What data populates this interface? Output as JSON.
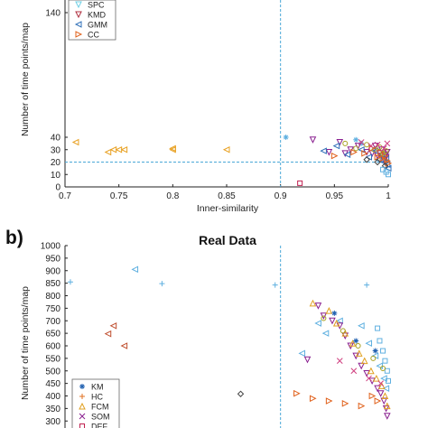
{
  "chart_data": [
    {
      "type": "scatter",
      "title": "",
      "xlabel": "Inner-similarity",
      "ylabel": "Number of time points/map",
      "xlim": [
        0.7,
        1.0
      ],
      "ylim": [
        0,
        160
      ],
      "xticks": [
        0.7,
        0.75,
        0.8,
        0.85,
        0.9,
        0.95,
        1
      ],
      "xtick_labels": [
        "0.7",
        "0.75",
        "0.8",
        "0.85",
        "0.9",
        "0.95",
        "1"
      ],
      "yticks": [
        0,
        10,
        20,
        30,
        40,
        140
      ],
      "ytick_labels": [
        "0",
        "10",
        "20",
        "30",
        "40",
        "140"
      ],
      "threshold_x": 0.9,
      "threshold_y": 20,
      "legend_position": "top-left",
      "legend": [
        {
          "label": "SPC",
          "marker": "tri-down",
          "color": "#6fd0e6"
        },
        {
          "label": "KMD",
          "marker": "tri-down",
          "color": "#b03040"
        },
        {
          "label": "GMM",
          "marker": "tri-left",
          "color": "#2f6fb8"
        },
        {
          "label": "CC",
          "marker": "tri-right",
          "color": "#e0601a"
        }
      ],
      "series": [
        {
          "marker": "tri-left",
          "color": "#e8a020",
          "points": [
            [
              0.71,
              36
            ],
            [
              0.74,
              28
            ],
            [
              0.745,
              30
            ],
            [
              0.75,
              30
            ],
            [
              0.755,
              30
            ],
            [
              0.8,
              31
            ],
            [
              0.8,
              30
            ],
            [
              0.85,
              30
            ]
          ]
        },
        {
          "marker": "star",
          "color": "#5fb0e0",
          "points": [
            [
              0.905,
              40
            ],
            [
              0.97,
              38
            ],
            [
              0.975,
              35
            ]
          ]
        },
        {
          "marker": "square",
          "color": "#c02050",
          "points": [
            [
              0.918,
              3
            ]
          ]
        },
        {
          "marker": "tri-down",
          "color": "#8a2090",
          "points": [
            [
              0.93,
              38
            ],
            [
              0.945,
              28
            ],
            [
              0.955,
              36
            ],
            [
              0.96,
              27
            ],
            [
              0.965,
              30
            ],
            [
              0.972,
              33
            ],
            [
              0.98,
              28
            ],
            [
              0.985,
              27
            ],
            [
              0.988,
              33
            ],
            [
              0.99,
              25
            ],
            [
              0.992,
              27
            ],
            [
              0.994,
              30
            ],
            [
              0.996,
              22
            ],
            [
              0.997,
              26
            ],
            [
              0.998,
              24
            ],
            [
              0.999,
              28
            ]
          ]
        },
        {
          "marker": "tri-left",
          "color": "#2f6fb8",
          "points": [
            [
              0.94,
              29
            ],
            [
              0.952,
              33
            ],
            [
              0.962,
              26
            ],
            [
              0.975,
              30
            ],
            [
              0.982,
              24
            ],
            [
              0.988,
              29
            ],
            [
              0.991,
              22
            ],
            [
              0.994,
              26
            ],
            [
              0.996,
              20
            ],
            [
              0.998,
              23
            ],
            [
              0.999,
              18
            ],
            [
              1.0,
              15
            ]
          ]
        },
        {
          "marker": "tri-right",
          "color": "#e0601a",
          "points": [
            [
              0.95,
              25
            ],
            [
              0.968,
              28
            ],
            [
              0.978,
              27
            ],
            [
              0.985,
              31
            ],
            [
              0.99,
              24
            ],
            [
              0.993,
              28
            ],
            [
              0.995,
              23
            ],
            [
              0.997,
              25
            ],
            [
              0.999,
              21
            ],
            [
              1.0,
              19
            ]
          ]
        },
        {
          "marker": "circle",
          "color": "#a8a020",
          "points": [
            [
              0.96,
              35
            ],
            [
              0.97,
              31
            ],
            [
              0.98,
              34
            ],
            [
              0.987,
              30
            ],
            [
              0.992,
              32
            ],
            [
              0.995,
              27
            ],
            [
              0.998,
              29
            ]
          ]
        },
        {
          "marker": "x",
          "color": "#d04080",
          "points": [
            [
              0.975,
              36
            ],
            [
              0.984,
              33
            ],
            [
              0.99,
              34
            ],
            [
              0.996,
              31
            ],
            [
              0.999,
              35
            ]
          ]
        },
        {
          "marker": "diamond",
          "color": "#444444",
          "points": [
            [
              0.98,
              22
            ],
            [
              0.99,
              20
            ],
            [
              0.997,
              17
            ]
          ]
        },
        {
          "marker": "square",
          "color": "#60b0e0",
          "points": [
            [
              0.995,
              14
            ],
            [
              0.998,
              12
            ],
            [
              1.0,
              10
            ]
          ]
        }
      ]
    },
    {
      "type": "scatter",
      "panel_label": "b)",
      "title": "Real Data",
      "xlabel": "",
      "ylabel": "Number of time points/map",
      "ylim": [
        285,
        1000
      ],
      "xlim": [
        0.7,
        1.0
      ],
      "yticks": [
        300,
        350,
        400,
        450,
        500,
        550,
        600,
        650,
        700,
        750,
        800,
        850,
        900,
        950,
        1000
      ],
      "ytick_labels": [
        "300",
        "350",
        "400",
        "450",
        "500",
        "550",
        "600",
        "650",
        "700",
        "750",
        "800",
        "850",
        "900",
        "950",
        "1000"
      ],
      "threshold_x": 0.9,
      "legend_position": "bottom-left",
      "legend": [
        {
          "label": "KM",
          "marker": "star",
          "color": "#2060b0"
        },
        {
          "label": "HC",
          "marker": "plus",
          "color": "#e07020"
        },
        {
          "label": "FCM",
          "marker": "tri-up",
          "color": "#e0a020"
        },
        {
          "label": "SOM",
          "marker": "x",
          "color": "#8a2090"
        },
        {
          "label": "DEF",
          "marker": "square",
          "color": "#c02050"
        }
      ],
      "series": [
        {
          "marker": "plus",
          "color": "#5fb0e0",
          "points": [
            [
              0.705,
              855
            ],
            [
              0.79,
              848
            ],
            [
              0.895,
              843
            ],
            [
              0.98,
              843
            ]
          ]
        },
        {
          "marker": "tri-left",
          "color": "#5fb0e0",
          "points": [
            [
              0.765,
              905
            ],
            [
              0.92,
              570
            ],
            [
              0.935,
              690
            ],
            [
              0.942,
              650
            ],
            [
              0.955,
              700
            ],
            [
              0.975,
              680
            ],
            [
              0.982,
              610
            ],
            [
              0.988,
              560
            ],
            [
              0.992,
              520
            ],
            [
              0.996,
              470
            ],
            [
              0.998,
              430
            ]
          ]
        },
        {
          "marker": "tri-left",
          "color": "#c05030",
          "points": [
            [
              0.745,
              680
            ],
            [
              0.755,
              600
            ],
            [
              0.74,
              648
            ]
          ]
        },
        {
          "marker": "diamond",
          "color": "#444444",
          "points": [
            [
              0.863,
              408
            ]
          ]
        },
        {
          "marker": "tri-down",
          "color": "#8a2090",
          "points": [
            [
              0.925,
              545
            ],
            [
              0.935,
              760
            ],
            [
              0.94,
              720
            ],
            [
              0.948,
              700
            ],
            [
              0.955,
              680
            ],
            [
              0.96,
              640
            ],
            [
              0.965,
              600
            ],
            [
              0.97,
              560
            ],
            [
              0.975,
              520
            ],
            [
              0.98,
              490
            ],
            [
              0.985,
              460
            ],
            [
              0.99,
              430
            ],
            [
              0.993,
              410
            ],
            [
              0.996,
              380
            ],
            [
              0.998,
              350
            ],
            [
              0.999,
              320
            ]
          ]
        },
        {
          "marker": "tri-up",
          "color": "#e0a020",
          "points": [
            [
              0.93,
              770
            ],
            [
              0.945,
              740
            ],
            [
              0.952,
              690
            ],
            [
              0.96,
              650
            ],
            [
              0.967,
              610
            ],
            [
              0.973,
              570
            ],
            [
              0.978,
              540
            ],
            [
              0.984,
              500
            ],
            [
              0.989,
              470
            ],
            [
              0.994,
              440
            ],
            [
              0.997,
              400
            ],
            [
              0.999,
              360
            ]
          ]
        },
        {
          "marker": "tri-right",
          "color": "#e0601a",
          "points": [
            [
              0.915,
              410
            ],
            [
              0.93,
              390
            ],
            [
              0.945,
              380
            ],
            [
              0.96,
              370
            ],
            [
              0.975,
              360
            ],
            [
              0.985,
              400
            ],
            [
              0.99,
              380
            ]
          ]
        },
        {
          "marker": "square",
          "color": "#60b0e0",
          "points": [
            [
              0.99,
              670
            ],
            [
              0.992,
              620
            ],
            [
              0.995,
              580
            ],
            [
              0.997,
              540
            ],
            [
              0.999,
              500
            ],
            [
              1.0,
              460
            ]
          ]
        },
        {
          "marker": "circle",
          "color": "#a8a020",
          "points": [
            [
              0.94,
              710
            ],
            [
              0.958,
              660
            ],
            [
              0.972,
              600
            ],
            [
              0.986,
              550
            ],
            [
              0.995,
              510
            ]
          ]
        },
        {
          "marker": "star",
          "color": "#2060b0",
          "points": [
            [
              0.95,
              730
            ],
            [
              0.97,
              620
            ],
            [
              0.988,
              580
            ]
          ]
        },
        {
          "marker": "x",
          "color": "#d04080",
          "points": [
            [
              0.955,
              540
            ],
            [
              0.968,
              500
            ],
            [
              0.982,
              470
            ],
            [
              0.993,
              450
            ]
          ]
        }
      ]
    }
  ]
}
